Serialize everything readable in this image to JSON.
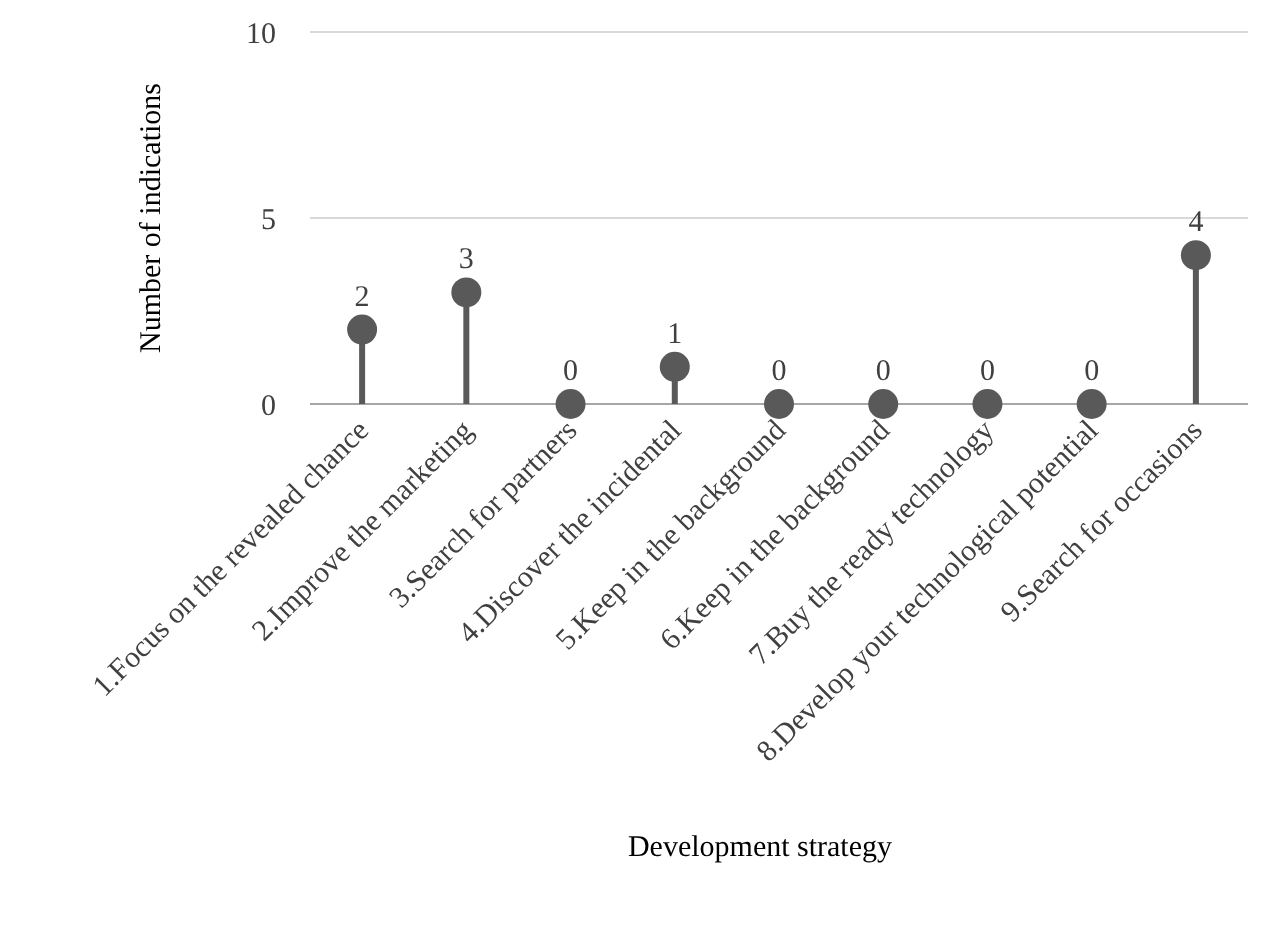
{
  "chart_data": {
    "type": "lollipop",
    "xlabel": "Development strategy",
    "ylabel": "Number of indications",
    "categories": [
      "1.Focus on the revealed chance",
      "2.Improve the marketing",
      "3.Search for partners",
      "4.Discover the incidental",
      "5.Keep in the background",
      "6.Keep in the background",
      "7.Buy the ready technology",
      "8.Develop your technological potential",
      "9.Search for occasions"
    ],
    "values": [
      2,
      3,
      0,
      1,
      0,
      0,
      0,
      0,
      4
    ],
    "color": "#595959",
    "ylim": [
      0,
      10
    ],
    "yticks": [
      0,
      5,
      10
    ],
    "grid": "y",
    "data_labels": true,
    "marker": "circle"
  }
}
